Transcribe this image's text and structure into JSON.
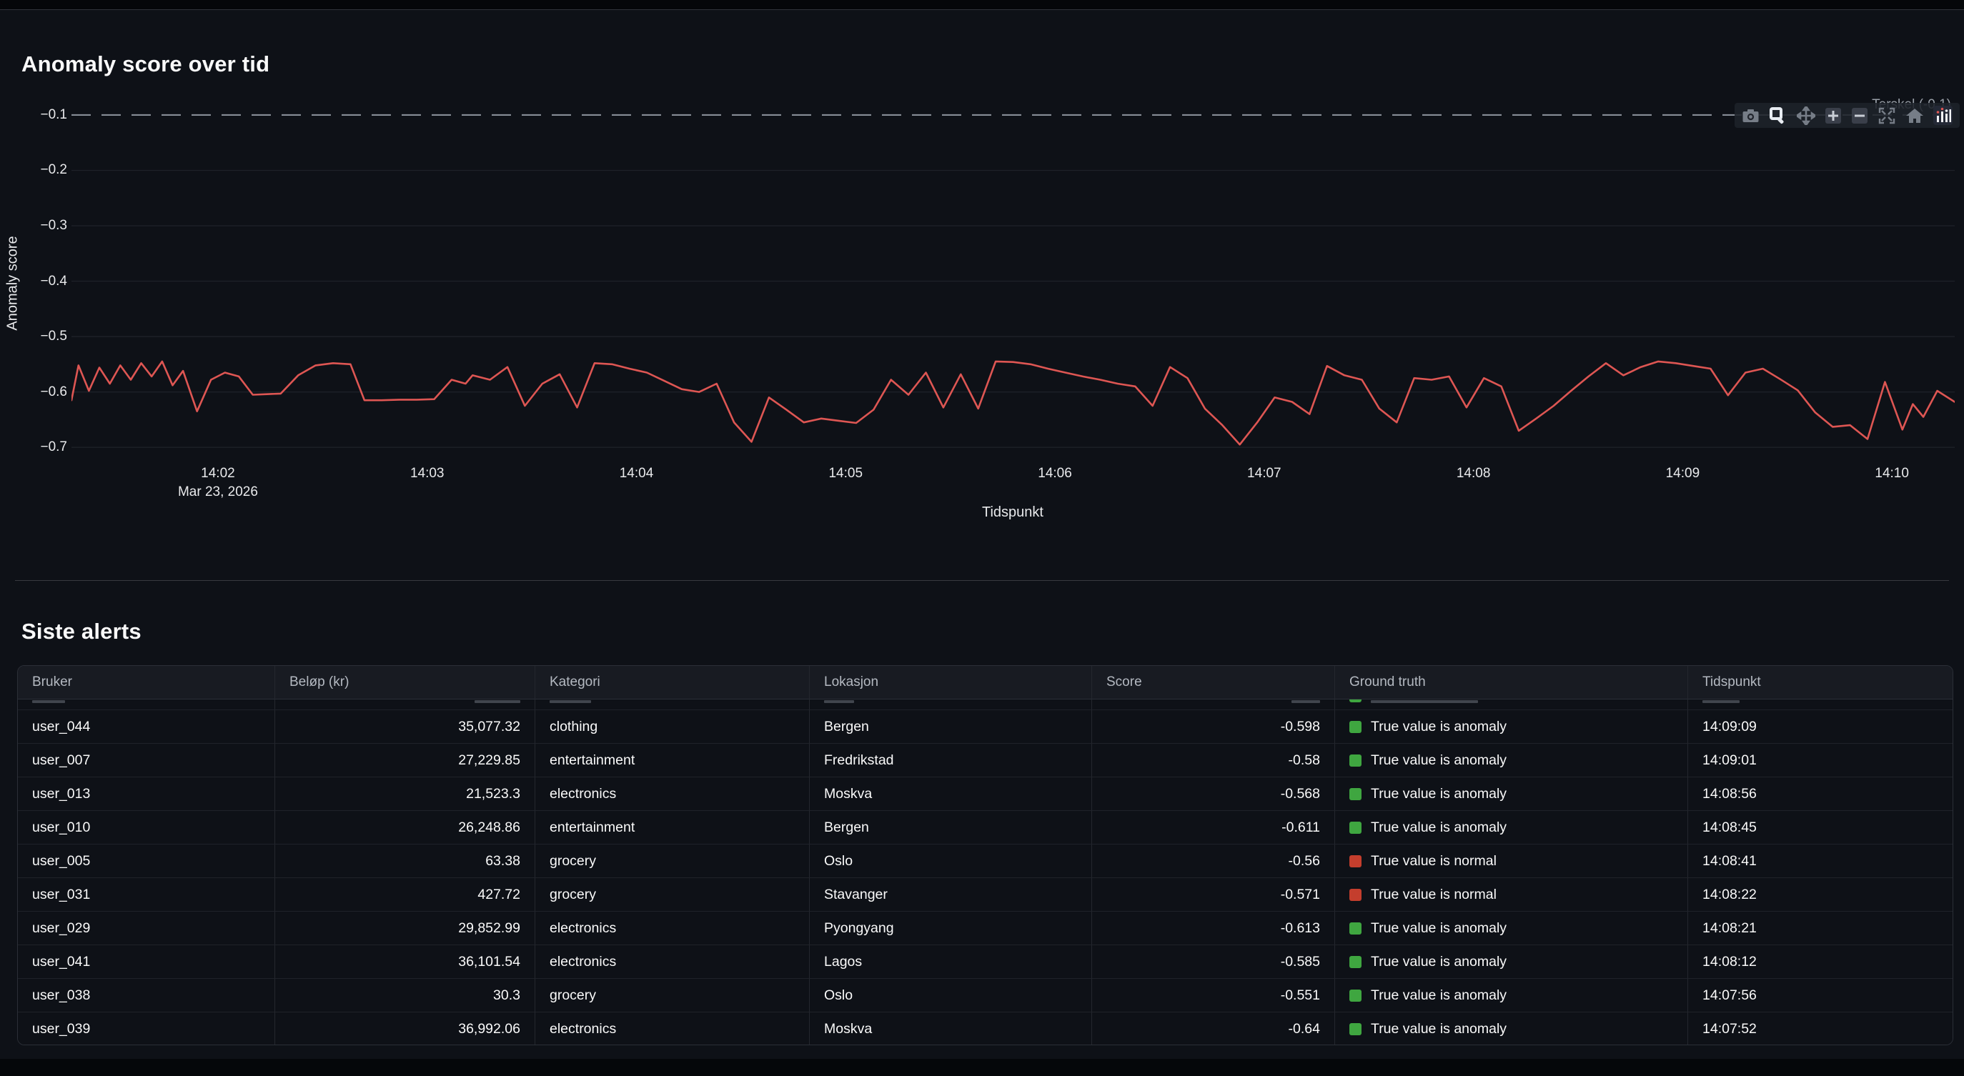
{
  "app": {
    "chart_section_title": "Anomaly score over tid",
    "alerts_section_title": "Siste alerts"
  },
  "chart_data": {
    "type": "line",
    "title": "Anomaly score over tid",
    "xlabel": "Tidspunkt",
    "ylabel": "Anomaly score",
    "x_axis": {
      "unit": "seconds after 14:00, Mar 23 2026",
      "range_seconds": [
        78,
        618
      ],
      "ticks": [
        {
          "t": 120,
          "label": "14:02",
          "sub": "Mar 23, 2026"
        },
        {
          "t": 180,
          "label": "14:03"
        },
        {
          "t": 240,
          "label": "14:04"
        },
        {
          "t": 300,
          "label": "14:05"
        },
        {
          "t": 360,
          "label": "14:06"
        },
        {
          "t": 420,
          "label": "14:07"
        },
        {
          "t": 480,
          "label": "14:08"
        },
        {
          "t": 540,
          "label": "14:09"
        },
        {
          "t": 600,
          "label": "14:10"
        }
      ]
    },
    "y_axis": {
      "range": [
        -0.705,
        -0.073
      ],
      "ticks": [
        {
          "value": -0.1,
          "label": "−0.1"
        },
        {
          "value": -0.2,
          "label": "−0.2"
        },
        {
          "value": -0.3,
          "label": "−0.3"
        },
        {
          "value": -0.4,
          "label": "−0.4"
        },
        {
          "value": -0.5,
          "label": "−0.5"
        },
        {
          "value": -0.6,
          "label": "−0.6"
        },
        {
          "value": -0.7,
          "label": "−0.7"
        }
      ],
      "grid": true
    },
    "threshold": {
      "value": -0.1,
      "label": "Terskel (-0.1)",
      "color": "#878d96",
      "dash": true
    },
    "series": [
      {
        "name": "Anomaly score",
        "color": "#de5653",
        "points": [
          [
            78,
            -0.615
          ],
          [
            80,
            -0.552
          ],
          [
            83,
            -0.598
          ],
          [
            86,
            -0.556
          ],
          [
            89,
            -0.585
          ],
          [
            92,
            -0.552
          ],
          [
            95,
            -0.578
          ],
          [
            98,
            -0.548
          ],
          [
            101,
            -0.572
          ],
          [
            104,
            -0.545
          ],
          [
            107,
            -0.588
          ],
          [
            110,
            -0.562
          ],
          [
            114,
            -0.635
          ],
          [
            118,
            -0.578
          ],
          [
            122,
            -0.565
          ],
          [
            126,
            -0.572
          ],
          [
            130,
            -0.605
          ],
          [
            134,
            -0.604
          ],
          [
            138,
            -0.603
          ],
          [
            143,
            -0.57
          ],
          [
            148,
            -0.552
          ],
          [
            153,
            -0.548
          ],
          [
            158,
            -0.55
          ],
          [
            162,
            -0.615
          ],
          [
            167,
            -0.615
          ],
          [
            172,
            -0.614
          ],
          [
            177,
            -0.614
          ],
          [
            182,
            -0.613
          ],
          [
            187,
            -0.578
          ],
          [
            191,
            -0.585
          ],
          [
            193,
            -0.57
          ],
          [
            198,
            -0.578
          ],
          [
            203,
            -0.555
          ],
          [
            208,
            -0.625
          ],
          [
            213,
            -0.585
          ],
          [
            218,
            -0.568
          ],
          [
            223,
            -0.628
          ],
          [
            228,
            -0.548
          ],
          [
            233,
            -0.55
          ],
          [
            238,
            -0.558
          ],
          [
            243,
            -0.565
          ],
          [
            248,
            -0.58
          ],
          [
            253,
            -0.595
          ],
          [
            258,
            -0.6
          ],
          [
            263,
            -0.585
          ],
          [
            268,
            -0.655
          ],
          [
            273,
            -0.69
          ],
          [
            278,
            -0.61
          ],
          [
            283,
            -0.632
          ],
          [
            288,
            -0.655
          ],
          [
            293,
            -0.648
          ],
          [
            298,
            -0.652
          ],
          [
            303,
            -0.656
          ],
          [
            308,
            -0.632
          ],
          [
            313,
            -0.578
          ],
          [
            318,
            -0.605
          ],
          [
            323,
            -0.565
          ],
          [
            328,
            -0.628
          ],
          [
            333,
            -0.568
          ],
          [
            338,
            -0.63
          ],
          [
            343,
            -0.545
          ],
          [
            348,
            -0.546
          ],
          [
            353,
            -0.55
          ],
          [
            358,
            -0.558
          ],
          [
            363,
            -0.565
          ],
          [
            368,
            -0.572
          ],
          [
            373,
            -0.578
          ],
          [
            378,
            -0.585
          ],
          [
            383,
            -0.59
          ],
          [
            388,
            -0.625
          ],
          [
            393,
            -0.555
          ],
          [
            398,
            -0.575
          ],
          [
            403,
            -0.63
          ],
          [
            408,
            -0.66
          ],
          [
            413,
            -0.695
          ],
          [
            418,
            -0.655
          ],
          [
            423,
            -0.61
          ],
          [
            428,
            -0.618
          ],
          [
            433,
            -0.64
          ],
          [
            438,
            -0.553
          ],
          [
            443,
            -0.57
          ],
          [
            448,
            -0.578
          ],
          [
            453,
            -0.63
          ],
          [
            458,
            -0.655
          ],
          [
            463,
            -0.575
          ],
          [
            468,
            -0.578
          ],
          [
            473,
            -0.572
          ],
          [
            478,
            -0.628
          ],
          [
            483,
            -0.575
          ],
          [
            488,
            -0.59
          ],
          [
            493,
            -0.67
          ],
          [
            498,
            -0.648
          ],
          [
            503,
            -0.625
          ],
          [
            508,
            -0.598
          ],
          [
            513,
            -0.572
          ],
          [
            518,
            -0.548
          ],
          [
            523,
            -0.57
          ],
          [
            528,
            -0.555
          ],
          [
            533,
            -0.545
          ],
          [
            538,
            -0.548
          ],
          [
            543,
            -0.553
          ],
          [
            548,
            -0.558
          ],
          [
            553,
            -0.606
          ],
          [
            558,
            -0.565
          ],
          [
            563,
            -0.558
          ],
          [
            568,
            -0.577
          ],
          [
            573,
            -0.597
          ],
          [
            578,
            -0.637
          ],
          [
            583,
            -0.663
          ],
          [
            588,
            -0.66
          ],
          [
            593,
            -0.685
          ],
          [
            598,
            -0.582
          ],
          [
            603,
            -0.668
          ],
          [
            606,
            -0.622
          ],
          [
            609,
            -0.645
          ],
          [
            613,
            -0.598
          ],
          [
            618,
            -0.618
          ]
        ]
      }
    ],
    "legend_position": "top-right",
    "modebar_icons": [
      "camera",
      "zoom",
      "pan",
      "zoom-in",
      "zoom-out",
      "autoscale",
      "reset-axes",
      "plotly-logo"
    ]
  },
  "alerts": {
    "columns": [
      "Bruker",
      "Beløp (kr)",
      "Kategori",
      "Lokasjon",
      "Score",
      "Ground truth",
      "Tidspunkt"
    ],
    "ground_truth_colors": {
      "anomaly": "#3fa640",
      "normal": "#c43e2d"
    },
    "partial_top_row_visible": true,
    "rows": [
      {
        "bruker": "user_044",
        "belop": "35,077.32",
        "kategori": "clothing",
        "lokasjon": "Bergen",
        "score": "-0.598",
        "ground_truth": "True value is anomaly",
        "gt_kind": "anomaly",
        "tidspunkt": "14:09:09"
      },
      {
        "bruker": "user_007",
        "belop": "27,229.85",
        "kategori": "entertainment",
        "lokasjon": "Fredrikstad",
        "score": "-0.58",
        "ground_truth": "True value is anomaly",
        "gt_kind": "anomaly",
        "tidspunkt": "14:09:01"
      },
      {
        "bruker": "user_013",
        "belop": "21,523.3",
        "kategori": "electronics",
        "lokasjon": "Moskva",
        "score": "-0.568",
        "ground_truth": "True value is anomaly",
        "gt_kind": "anomaly",
        "tidspunkt": "14:08:56"
      },
      {
        "bruker": "user_010",
        "belop": "26,248.86",
        "kategori": "entertainment",
        "lokasjon": "Bergen",
        "score": "-0.611",
        "ground_truth": "True value is anomaly",
        "gt_kind": "anomaly",
        "tidspunkt": "14:08:45"
      },
      {
        "bruker": "user_005",
        "belop": "63.38",
        "kategori": "grocery",
        "lokasjon": "Oslo",
        "score": "-0.56",
        "ground_truth": "True value is normal",
        "gt_kind": "normal",
        "tidspunkt": "14:08:41"
      },
      {
        "bruker": "user_031",
        "belop": "427.72",
        "kategori": "grocery",
        "lokasjon": "Stavanger",
        "score": "-0.571",
        "ground_truth": "True value is normal",
        "gt_kind": "normal",
        "tidspunkt": "14:08:22"
      },
      {
        "bruker": "user_029",
        "belop": "29,852.99",
        "kategori": "electronics",
        "lokasjon": "Pyongyang",
        "score": "-0.613",
        "ground_truth": "True value is anomaly",
        "gt_kind": "anomaly",
        "tidspunkt": "14:08:21"
      },
      {
        "bruker": "user_041",
        "belop": "36,101.54",
        "kategori": "electronics",
        "lokasjon": "Lagos",
        "score": "-0.585",
        "ground_truth": "True value is anomaly",
        "gt_kind": "anomaly",
        "tidspunkt": "14:08:12"
      },
      {
        "bruker": "user_038",
        "belop": "30.3",
        "kategori": "grocery",
        "lokasjon": "Oslo",
        "score": "-0.551",
        "ground_truth": "True value is anomaly",
        "gt_kind": "anomaly",
        "tidspunkt": "14:07:56"
      },
      {
        "bruker": "user_039",
        "belop": "36,992.06",
        "kategori": "electronics",
        "lokasjon": "Moskva",
        "score": "-0.64",
        "ground_truth": "True value is anomaly",
        "gt_kind": "anomaly",
        "tidspunkt": "14:07:52"
      }
    ]
  }
}
